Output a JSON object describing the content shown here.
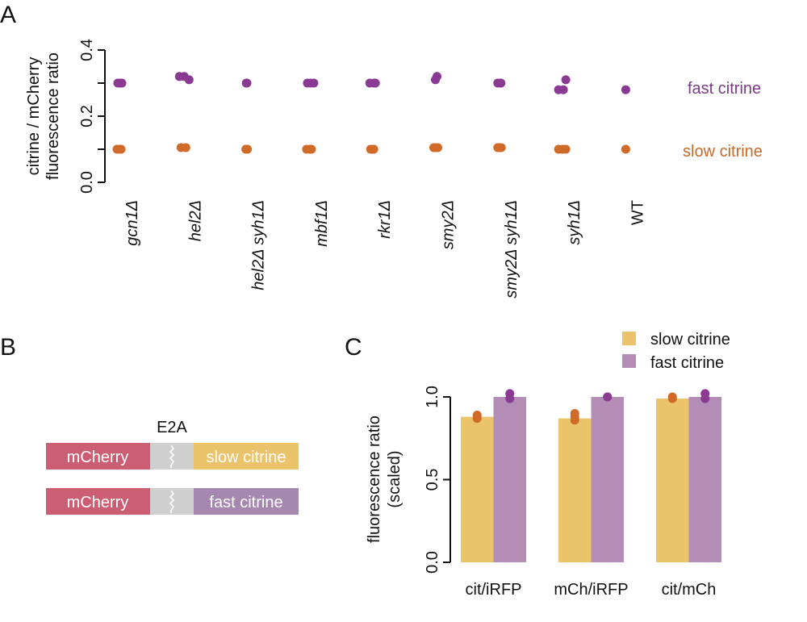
{
  "colors": {
    "fast_point": "#8a3a92",
    "slow_point": "#d06a28",
    "slow_bar": "#ebc36a",
    "fast_bar": "#b38db6",
    "mcherry": "#cc5e74",
    "linker": "#cfcfcf",
    "slow_construct": "#ebc36a",
    "fast_construct": "#a687b0",
    "fast_label": "#7a3b86",
    "slow_label": "#c46a2b",
    "axis": "#111111"
  },
  "panels": {
    "A": "A",
    "B": "B",
    "C": "C"
  },
  "chart_data": [
    {
      "panel": "A",
      "type": "scatter",
      "title": "",
      "xlabel": "",
      "ylabel": "citrine / mCherry fluorescence ratio",
      "ylabel_lines": [
        "citrine / mCherry",
        "fluorescence ratio"
      ],
      "ylim": [
        0.0,
        0.4
      ],
      "yticks": [
        0.0,
        0.1,
        0.2,
        0.3,
        0.4
      ],
      "ytick_labels": [
        "0.0",
        "",
        "0.2",
        "",
        "0.4"
      ],
      "grid": false,
      "categories": [
        "gcn1Δ",
        "hel2Δ",
        "hel2Δ syh1Δ",
        "mbf1Δ",
        "rkr1Δ",
        "smy2Δ",
        "smy2Δ syh1Δ",
        "syh1Δ",
        "WT"
      ],
      "categories_italic": [
        true,
        true,
        true,
        true,
        true,
        true,
        true,
        true,
        false
      ],
      "series": [
        {
          "name": "fast citrine",
          "label_position": "right",
          "points": [
            [
              [
                0.3,
                -0.15
              ],
              [
                0.3,
                0.0
              ],
              [
                0.3,
                0.1
              ]
            ],
            [
              [
                0.32,
                -0.25
              ],
              [
                0.32,
                0.05
              ],
              [
                0.31,
                0.35
              ]
            ],
            [
              [
                0.3,
                -0.02
              ],
              [
                0.3,
                0.02
              ]
            ],
            [
              [
                0.3,
                -0.15
              ],
              [
                0.3,
                0.05
              ],
              [
                0.3,
                0.25
              ]
            ],
            [
              [
                0.3,
                -0.2
              ],
              [
                0.3,
                0.05
              ],
              [
                0.3,
                0.15
              ]
            ],
            [
              [
                0.31,
                -0.05
              ],
              [
                0.32,
                0.05
              ]
            ],
            [
              [
                0.3,
                -0.1
              ],
              [
                0.3,
                0.05
              ],
              [
                0.3,
                0.1
              ]
            ],
            [
              [
                0.28,
                -0.25
              ],
              [
                0.28,
                0.05
              ],
              [
                0.31,
                0.2
              ]
            ],
            [
              [
                0.28,
                0.0
              ]
            ]
          ]
        },
        {
          "name": "slow citrine",
          "label_position": "right",
          "points": [
            [
              [
                0.1,
                -0.2
              ],
              [
                0.1,
                -0.05
              ],
              [
                0.1,
                0.05
              ]
            ],
            [
              [
                0.105,
                -0.15
              ],
              [
                0.105,
                0.15
              ]
            ],
            [
              [
                0.1,
                -0.05
              ],
              [
                0.1,
                0.05
              ]
            ],
            [
              [
                0.1,
                -0.2
              ],
              [
                0.1,
                0.0
              ],
              [
                0.1,
                0.1
              ]
            ],
            [
              [
                0.1,
                -0.15
              ],
              [
                0.1,
                0.0
              ],
              [
                0.1,
                0.05
              ]
            ],
            [
              [
                0.105,
                -0.15
              ],
              [
                0.105,
                0.0
              ],
              [
                0.105,
                0.1
              ]
            ],
            [
              [
                0.105,
                -0.1
              ],
              [
                0.105,
                0.0
              ],
              [
                0.105,
                0.12
              ]
            ],
            [
              [
                0.1,
                -0.25
              ],
              [
                0.1,
                0.0
              ],
              [
                0.1,
                0.2
              ]
            ],
            [
              [
                0.1,
                0.0
              ]
            ]
          ]
        }
      ]
    },
    {
      "panel": "C",
      "type": "bar",
      "title": "",
      "xlabel": "",
      "ylabel": "fluorescence ratio (scaled)",
      "ylabel_lines": [
        "fluorescence ratio",
        "(scaled)"
      ],
      "ylim": [
        0.0,
        1.0
      ],
      "yticks": [
        0.0,
        0.5,
        1.0
      ],
      "ytick_labels": [
        "0.0",
        "0.5",
        "1.0"
      ],
      "grid": false,
      "legend_position": "top-right",
      "categories": [
        "cit/iRFP",
        "mCh/iRFP",
        "cit/mCh"
      ],
      "series": [
        {
          "name": "slow citrine",
          "values": [
            0.88,
            0.87,
            0.99
          ],
          "points": [
            [
              0.89,
              0.87
            ],
            [
              0.9,
              0.88,
              0.86
            ],
            [
              1.0,
              0.99
            ]
          ]
        },
        {
          "name": "fast citrine",
          "values": [
            1.0,
            1.0,
            1.0
          ],
          "points": [
            [
              1.02,
              0.99
            ],
            [
              1.0,
              1.0
            ],
            [
              1.02,
              0.99
            ]
          ]
        }
      ]
    }
  ],
  "diagram_B": {
    "linker_label": "E2A",
    "constructs": [
      {
        "left": "mCherry",
        "right": "slow citrine",
        "variant": "slow"
      },
      {
        "left": "mCherry",
        "right": "fast citrine",
        "variant": "fast"
      }
    ]
  }
}
